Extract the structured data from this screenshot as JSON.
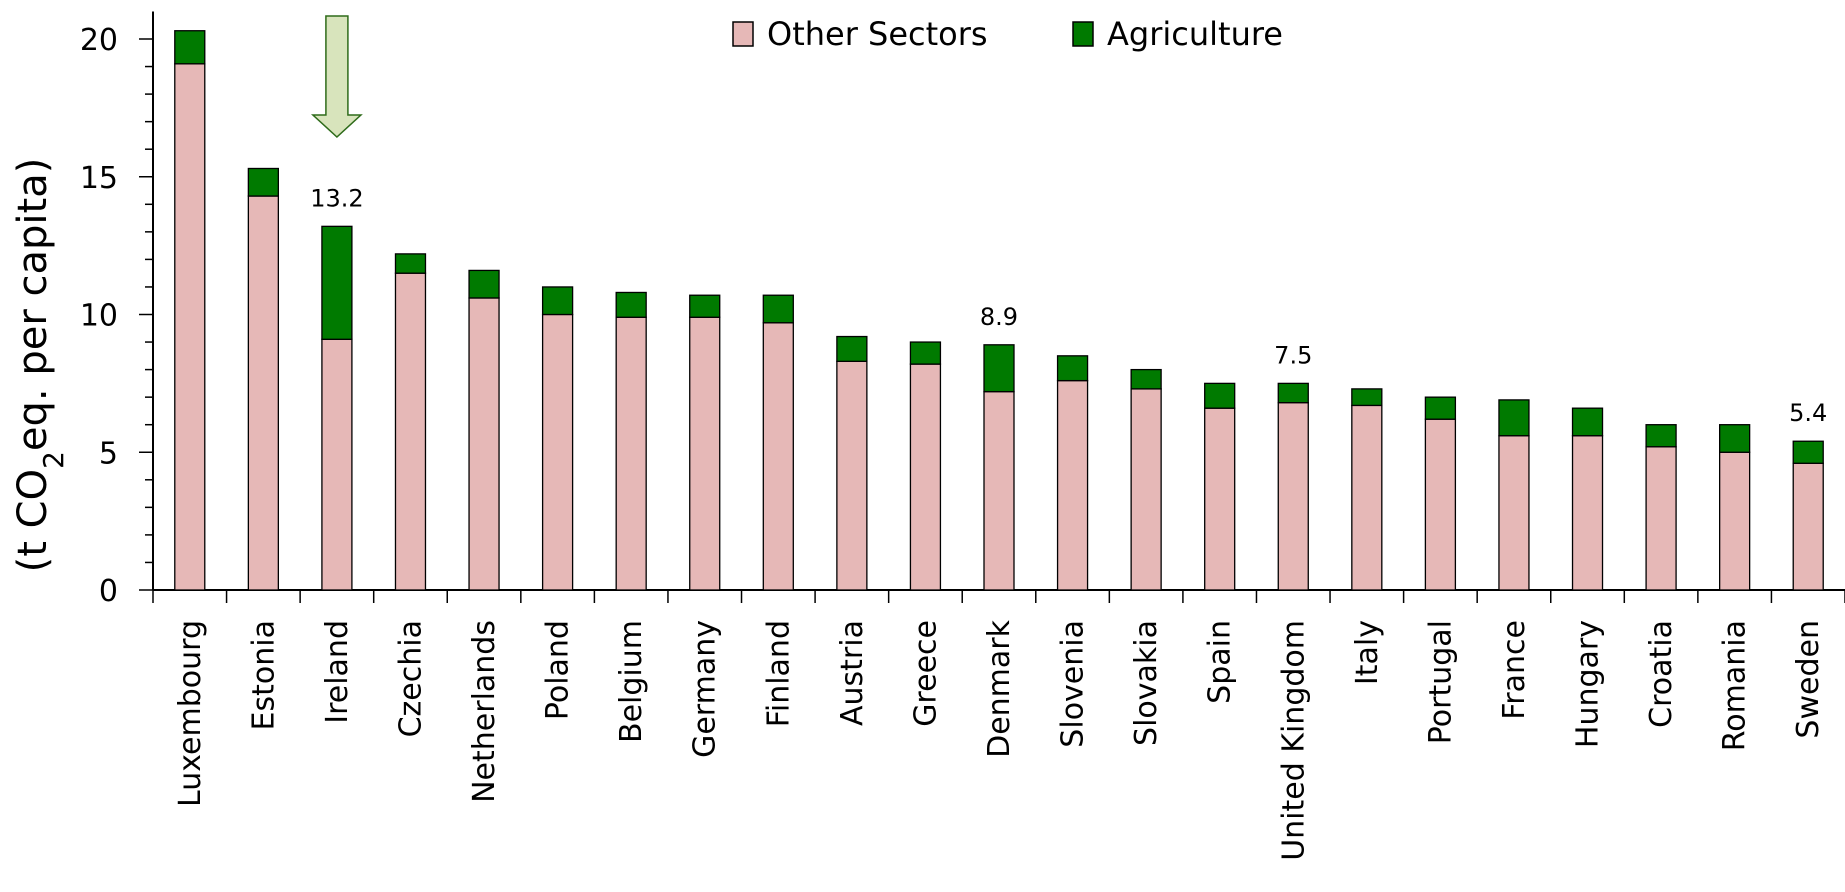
{
  "chart_data": {
    "type": "bar",
    "stacked": true,
    "categories": [
      "Luxembourg",
      "Estonia",
      "Ireland",
      "Czechia",
      "Netherlands",
      "Poland",
      "Belgium",
      "Germany",
      "Finland",
      "Austria",
      "Greece",
      "Denmark",
      "Slovenia",
      "Slovakia",
      "Spain",
      "United Kingdom",
      "Italy",
      "Portugal",
      "France",
      "Hungary",
      "Croatia",
      "Romania",
      "Sweden"
    ],
    "series": [
      {
        "name": "Other Sectors",
        "color": "#e6b8b7",
        "values": [
          19.1,
          14.3,
          9.1,
          11.5,
          10.6,
          10.0,
          9.9,
          9.9,
          9.7,
          8.3,
          8.2,
          7.2,
          7.6,
          7.3,
          6.6,
          6.8,
          6.7,
          6.2,
          5.6,
          5.6,
          5.2,
          5.0,
          4.6
        ]
      },
      {
        "name": "Agriculture",
        "color": "#007a00",
        "values": [
          1.2,
          1.0,
          4.1,
          0.7,
          1.0,
          1.0,
          0.9,
          0.8,
          1.0,
          0.9,
          0.8,
          1.7,
          0.9,
          0.7,
          0.9,
          0.7,
          0.6,
          0.8,
          1.3,
          1.0,
          0.8,
          1.0,
          0.8
        ]
      }
    ],
    "data_labels": [
      {
        "category": "Ireland",
        "text": "13.2"
      },
      {
        "category": "Denmark",
        "text": "8.9"
      },
      {
        "category": "United Kingdom",
        "text": "7.5"
      },
      {
        "category": "Sweden",
        "text": "5.4"
      }
    ],
    "highlight": {
      "category": "Ireland",
      "marker": "down-arrow",
      "color": "#d8e4bc"
    },
    "ylabel_parts": {
      "pre": "(t CO",
      "sub": "2",
      "post": "eq. per capita)"
    },
    "ylim": [
      0,
      21
    ],
    "yticks": [
      0,
      5,
      10,
      15,
      20
    ],
    "legend": {
      "position": "top-center"
    },
    "grid": false
  }
}
